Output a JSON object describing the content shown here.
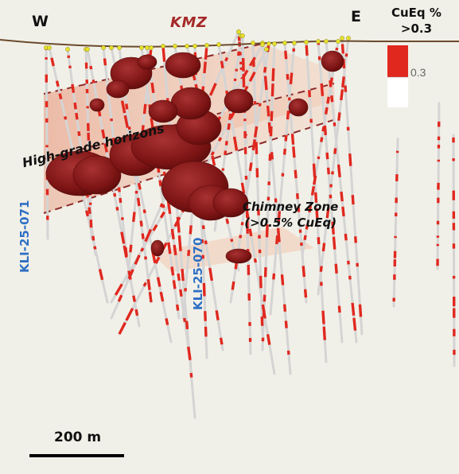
{
  "labels": {
    "west": "W",
    "east": "E",
    "zone": "KMZ",
    "high_grade": "High-grade horizons",
    "chimney_line1": "Chimney Zone",
    "chimney_line2": "(>0.5% CuEq)",
    "hole_a": "KLI-25-071",
    "hole_b": "KLI-25-070"
  },
  "legend": {
    "title_line1": "CuEq %",
    "title_line2": ">0.3",
    "threshold": "0.3"
  },
  "scale_bar": {
    "label": "200 m"
  },
  "colors": {
    "background": "#f1f0e8",
    "ore_body": "#7d1414",
    "assay_red": "#e0281f",
    "drill_hole": "#d9d9d9",
    "plane": "#f0a88a",
    "surface": "#6b4a2c",
    "collar": "#e8e02a",
    "hole_label": "#2e6fc4",
    "zone_label": "#a52a2a"
  }
}
